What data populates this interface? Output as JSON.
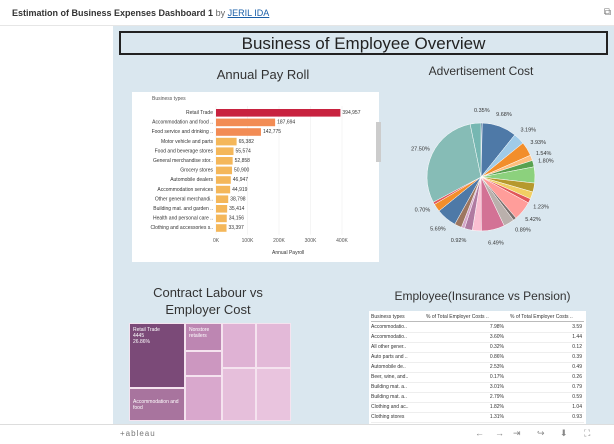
{
  "header": {
    "title": "Estimation of Business Expenses Dashboard 1",
    "by": "by",
    "author": "JERIL IDA",
    "corner_icon": "external-link-icon"
  },
  "dashboard": {
    "title": "Business of Employee Overview",
    "payroll_title": "Annual Pay Roll",
    "ad_title": "Advertisement Cost",
    "contract_title_line1": "Contract Labour vs",
    "contract_title_line2": "Employer Cost",
    "insurance_title": "Employee(Insurance vs Pension)"
  },
  "chart_data": [
    {
      "type": "bar",
      "orientation": "horizontal",
      "title": "Annual Pay Roll",
      "row_header": "Business types",
      "xlabel": "Annual Payroll",
      "categories": [
        "Retail Trade",
        "Accommodation and food ..",
        "Food service and drinking ..",
        "Motor vehicle and parts",
        "Food and beverage stores",
        "General merchandise stor..",
        "Grocery stores",
        "Automobile dealers",
        "Accommodation services",
        "Other general merchandi..",
        "Building mat. and garden ..",
        "Health and personal care ..",
        "Clothing and accessories s.."
      ],
      "values": [
        394957,
        187694,
        142775,
        65382,
        55574,
        52858,
        50900,
        46947,
        44919,
        38798,
        35414,
        34156,
        33397
      ],
      "value_labels": [
        "394,957",
        "187,694",
        "142,775",
        "65,382",
        "55,574",
        "52,858",
        "50,900",
        "46,947",
        "44,919",
        "38,798",
        "35,414",
        "34,156",
        "33,397"
      ],
      "xticks": [
        "0K",
        "100K",
        "200K",
        "300K",
        "400K"
      ],
      "xlim": [
        0,
        400000
      ],
      "colors": [
        "#c8223f",
        "#f28c55",
        "#f28c55",
        "#f4b75a",
        "#f4b75a",
        "#f4b75a",
        "#f4b75a",
        "#f4b75a",
        "#f4b75a",
        "#f4b75a",
        "#f4b75a",
        "#f4b75a",
        "#f4b75a"
      ],
      "grid": true
    },
    {
      "type": "pie",
      "title": "Advertisement Cost",
      "labels": [
        "9.68%",
        "3.19%",
        "3.93%",
        "1.54%",
        "1.80%",
        "1.23%",
        "5.42%",
        "0.89%",
        "6.49%",
        "0.92%",
        "5.69%",
        "0.70%",
        "27.50%",
        "0.35%"
      ],
      "slices": [
        {
          "label": "0.35%",
          "value": 0.35,
          "color": "#2f5a8a"
        },
        {
          "label": "9.68%",
          "value": 9.68,
          "color": "#4e79a7"
        },
        {
          "label": "3.19%",
          "value": 3.19,
          "color": "#a0cbe8"
        },
        {
          "label": "3.93%",
          "value": 3.93,
          "color": "#f28e2b"
        },
        {
          "label": "1.54%",
          "value": 1.54,
          "color": "#ffbe7d"
        },
        {
          "label": "1.80%",
          "value": 1.8,
          "color": "#59a14f"
        },
        {
          "label": "",
          "value": 4.5,
          "color": "#8cd17d"
        },
        {
          "label": "",
          "value": 2.5,
          "color": "#b6992d"
        },
        {
          "label": "",
          "value": 2.0,
          "color": "#f1ce63"
        },
        {
          "label": "1.23%",
          "value": 1.23,
          "color": "#e15759"
        },
        {
          "label": "5.42%",
          "value": 5.42,
          "color": "#ff9d9a"
        },
        {
          "label": "0.89%",
          "value": 0.89,
          "color": "#79706e"
        },
        {
          "label": "",
          "value": 3.0,
          "color": "#bab0ac"
        },
        {
          "label": "6.49%",
          "value": 6.49,
          "color": "#d37295"
        },
        {
          "label": "",
          "value": 2.5,
          "color": "#fabfd2"
        },
        {
          "label": "",
          "value": 2.2,
          "color": "#b07aa1"
        },
        {
          "label": "0.92%",
          "value": 0.92,
          "color": "#d4a6c8"
        },
        {
          "label": "",
          "value": 2.0,
          "color": "#9d7660"
        },
        {
          "label": "5.69%",
          "value": 5.69,
          "color": "#4e79a7"
        },
        {
          "label": "",
          "value": 2.2,
          "color": "#f28e2b"
        },
        {
          "label": "0.70%",
          "value": 0.7,
          "color": "#e15759"
        },
        {
          "label": "27.50%",
          "value": 27.5,
          "color": "#86bcb6"
        },
        {
          "label": "",
          "value": 3.0,
          "color": "#76b7b2"
        }
      ]
    },
    {
      "type": "treemap",
      "title": "Contract Labour vs Employer Cost",
      "cells": [
        {
          "name": "Retail Trade",
          "value": "4445",
          "pct": "26.86%",
          "color": "#7b4a78"
        },
        {
          "name": "Accommodation and food",
          "color": "#a8749e"
        },
        {
          "name": "Nonstore retailers",
          "color": "#bd86b2"
        },
        {
          "name": "",
          "color": "#cc97c0"
        },
        {
          "name": "",
          "color": "#d9a8cd"
        },
        {
          "name": "",
          "color": "#dfb2d4"
        },
        {
          "name": "",
          "color": "#e3b9d8"
        },
        {
          "name": "",
          "color": "#e6bfdb"
        },
        {
          "name": "",
          "color": "#e9c4de"
        }
      ]
    },
    {
      "type": "table",
      "title": "Employee(Insurance vs Pension)",
      "columns": [
        "Business types",
        "% of Total Employer Costs ..",
        "% of Total Employer Costs .."
      ],
      "rows": [
        [
          "Accommodatio..",
          "7.98%",
          "3.59"
        ],
        [
          "Accommodatio..",
          "3.60%",
          "1.44"
        ],
        [
          "All other gener..",
          "0.32%",
          "0.12"
        ],
        [
          "Auto parts and ..",
          "0.86%",
          "0.39"
        ],
        [
          "Automobile de..",
          "2.53%",
          "0.49"
        ],
        [
          "Beer, wine, and..",
          "0.17%",
          "0.26"
        ],
        [
          "Building mat. a..",
          "3.01%",
          "0.79"
        ],
        [
          "Building mat. a..",
          "2.79%",
          "0.59"
        ],
        [
          "Clothing and ac..",
          "1.82%",
          "1.04"
        ],
        [
          "Clothing stores",
          "1.31%",
          "0.93"
        ]
      ]
    }
  ],
  "footer": {
    "brand": "+ableau",
    "controls": [
      "undo-icon",
      "redo-icon",
      "revert-icon",
      "share-icon",
      "download-icon",
      "fullscreen-icon"
    ]
  }
}
